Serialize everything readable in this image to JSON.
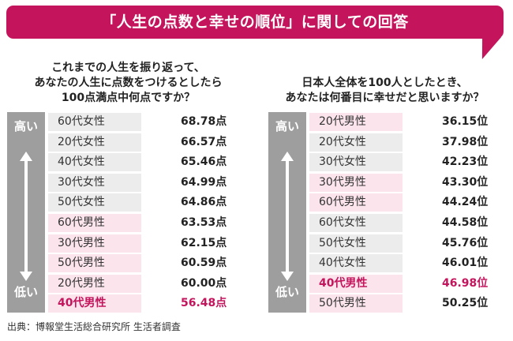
{
  "banner": {
    "title": "「人生の点数と幸せの順位」に関しての回答",
    "color": "#c4155c"
  },
  "left": {
    "question_lines": [
      "これまでの人生を振り返って、",
      "あなたの人生に点数をつけるとしたら",
      "100点満点中何点ですか？"
    ],
    "high_label": "高い",
    "low_label": "低い",
    "rows": [
      {
        "group": "60代女性",
        "value": "68.78点"
      },
      {
        "group": "20代女性",
        "value": "66.57点"
      },
      {
        "group": "40代女性",
        "value": "65.46点"
      },
      {
        "group": "30代女性",
        "value": "64.99点"
      },
      {
        "group": "50代女性",
        "value": "64.86点"
      },
      {
        "group": "60代男性",
        "value": "63.53点"
      },
      {
        "group": "30代男性",
        "value": "62.15点"
      },
      {
        "group": "50代男性",
        "value": "60.59点"
      },
      {
        "group": "20代男性",
        "value": "60.00点"
      },
      {
        "group": "40代男性",
        "value": "56.48点"
      }
    ]
  },
  "right": {
    "question_lines": [
      "日本人全体を100人としたとき、",
      "あなたは何番目に幸せだと思いますか？"
    ],
    "high_label": "高い",
    "low_label": "低い",
    "rows": [
      {
        "group": "20代男性",
        "value": "36.15位"
      },
      {
        "group": "20代女性",
        "value": "37.98位"
      },
      {
        "group": "30代女性",
        "value": "42.23位"
      },
      {
        "group": "30代男性",
        "value": "43.30位"
      },
      {
        "group": "60代男性",
        "value": "44.24位"
      },
      {
        "group": "60代女性",
        "value": "44.58位"
      },
      {
        "group": "50代女性",
        "value": "45.76位"
      },
      {
        "group": "40代女性",
        "value": "46.01位"
      },
      {
        "group": "40代男性",
        "value": "46.98位"
      },
      {
        "group": "50代男性",
        "value": "50.25位"
      }
    ]
  },
  "source": "出典：博報堂生活総合研究所 生活者調査"
}
